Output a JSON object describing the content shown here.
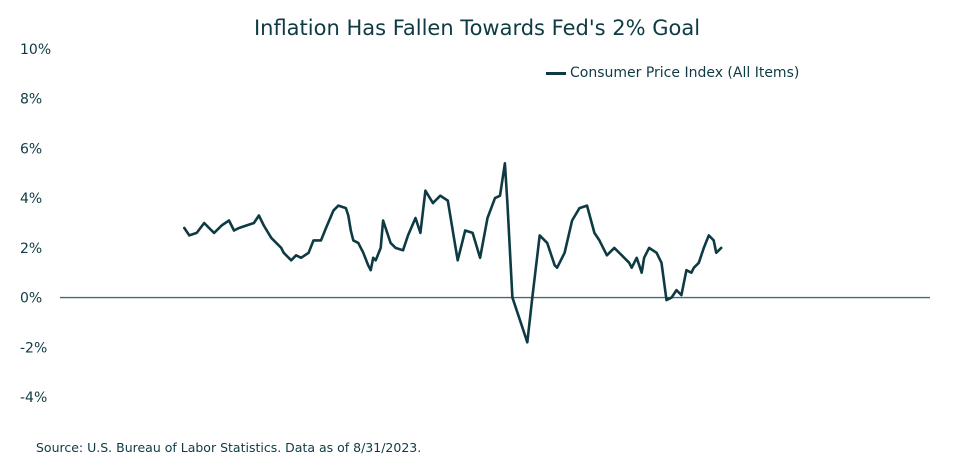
{
  "chart_data": {
    "type": "line",
    "title": "Inflation Has Fallen Towards Fed's 2% Goal",
    "xlabel": "",
    "ylabel": "",
    "ylim": [
      -4,
      10
    ],
    "xlim": [
      1997.0,
      2032.0
    ],
    "y_ticks": [
      "10%",
      "8%",
      "6%",
      "4%",
      "2%",
      "0%",
      "-2%",
      "-4%"
    ],
    "y_tick_values": [
      10,
      8,
      6,
      4,
      2,
      0,
      -2,
      -4
    ],
    "grid": false,
    "legend_position": "top-right",
    "series": [
      {
        "name": "Consumer Price Index (All Items)",
        "color": "#0e3b43",
        "x": [
          2002.0,
          2002.2,
          2002.5,
          2002.8,
          2003.0,
          2003.2,
          2003.5,
          2003.8,
          2004.0,
          2004.2,
          2004.5,
          2004.8,
          2005.0,
          2005.2,
          2005.5,
          2005.7,
          2005.9,
          2006.0,
          2006.3,
          2006.5,
          2006.7,
          2007.0,
          2007.2,
          2007.5,
          2007.7,
          2008.0,
          2008.2,
          2008.5,
          2008.6,
          2008.7,
          2008.8,
          2009.0,
          2009.2,
          2009.4,
          2009.5,
          2009.6,
          2009.7,
          2009.9,
          2010.0,
          2010.3,
          2010.5,
          2010.8,
          2011.0,
          2011.3,
          2011.5,
          2011.7,
          2012.0,
          2012.3,
          2012.6,
          2012.9,
          2013.0,
          2013.3,
          2013.6,
          2013.9,
          2014.2,
          2014.5,
          2014.7,
          2014.9,
          2015.0,
          2015.2,
          2015.5,
          2015.8,
          2016.0,
          2016.3,
          2016.6,
          2016.9,
          2017.0,
          2017.3,
          2017.6,
          2017.9,
          2018.2,
          2018.5,
          2018.7,
          2019.0,
          2019.3,
          2019.6,
          2019.9,
          2020.0,
          2020.2,
          2020.4,
          2020.5,
          2020.7,
          2021.0,
          2021.2,
          2021.4,
          2021.6,
          2021.8,
          2022.0,
          2022.2,
          2022.4,
          2022.5,
          2022.7,
          2022.9,
          2023.1,
          2023.3,
          2023.4,
          2023.6
        ],
        "values": [
          2.8,
          2.5,
          2.6,
          3.0,
          2.8,
          2.6,
          2.9,
          3.1,
          2.7,
          2.8,
          2.9,
          3.0,
          3.3,
          2.9,
          2.4,
          2.2,
          2.0,
          1.8,
          1.5,
          1.7,
          1.6,
          1.8,
          2.3,
          2.3,
          2.8,
          3.5,
          3.7,
          3.6,
          3.3,
          2.7,
          2.3,
          2.2,
          1.8,
          1.3,
          1.1,
          1.6,
          1.5,
          2.0,
          3.1,
          2.2,
          2.0,
          1.9,
          2.5,
          3.2,
          2.6,
          4.3,
          3.8,
          4.1,
          3.9,
          2.1,
          1.5,
          2.7,
          2.6,
          1.6,
          3.2,
          4.0,
          4.1,
          5.4,
          3.8,
          0.0,
          -0.9,
          -1.8,
          0.0,
          2.5,
          2.2,
          1.3,
          1.2,
          1.8,
          3.1,
          3.6,
          3.7,
          2.6,
          2.3,
          1.7,
          2.0,
          1.7,
          1.4,
          1.2,
          1.6,
          1.0,
          1.6,
          2.0,
          1.8,
          1.4,
          -0.1,
          0.0,
          0.3,
          0.1,
          1.1,
          1.0,
          1.2,
          1.4,
          2.0,
          2.5,
          2.3,
          1.8,
          2.0
        ]
      }
    ]
  },
  "source_note": "Source: U.S. Bureau of Labor Statistics. Data as of 8/31/2023."
}
